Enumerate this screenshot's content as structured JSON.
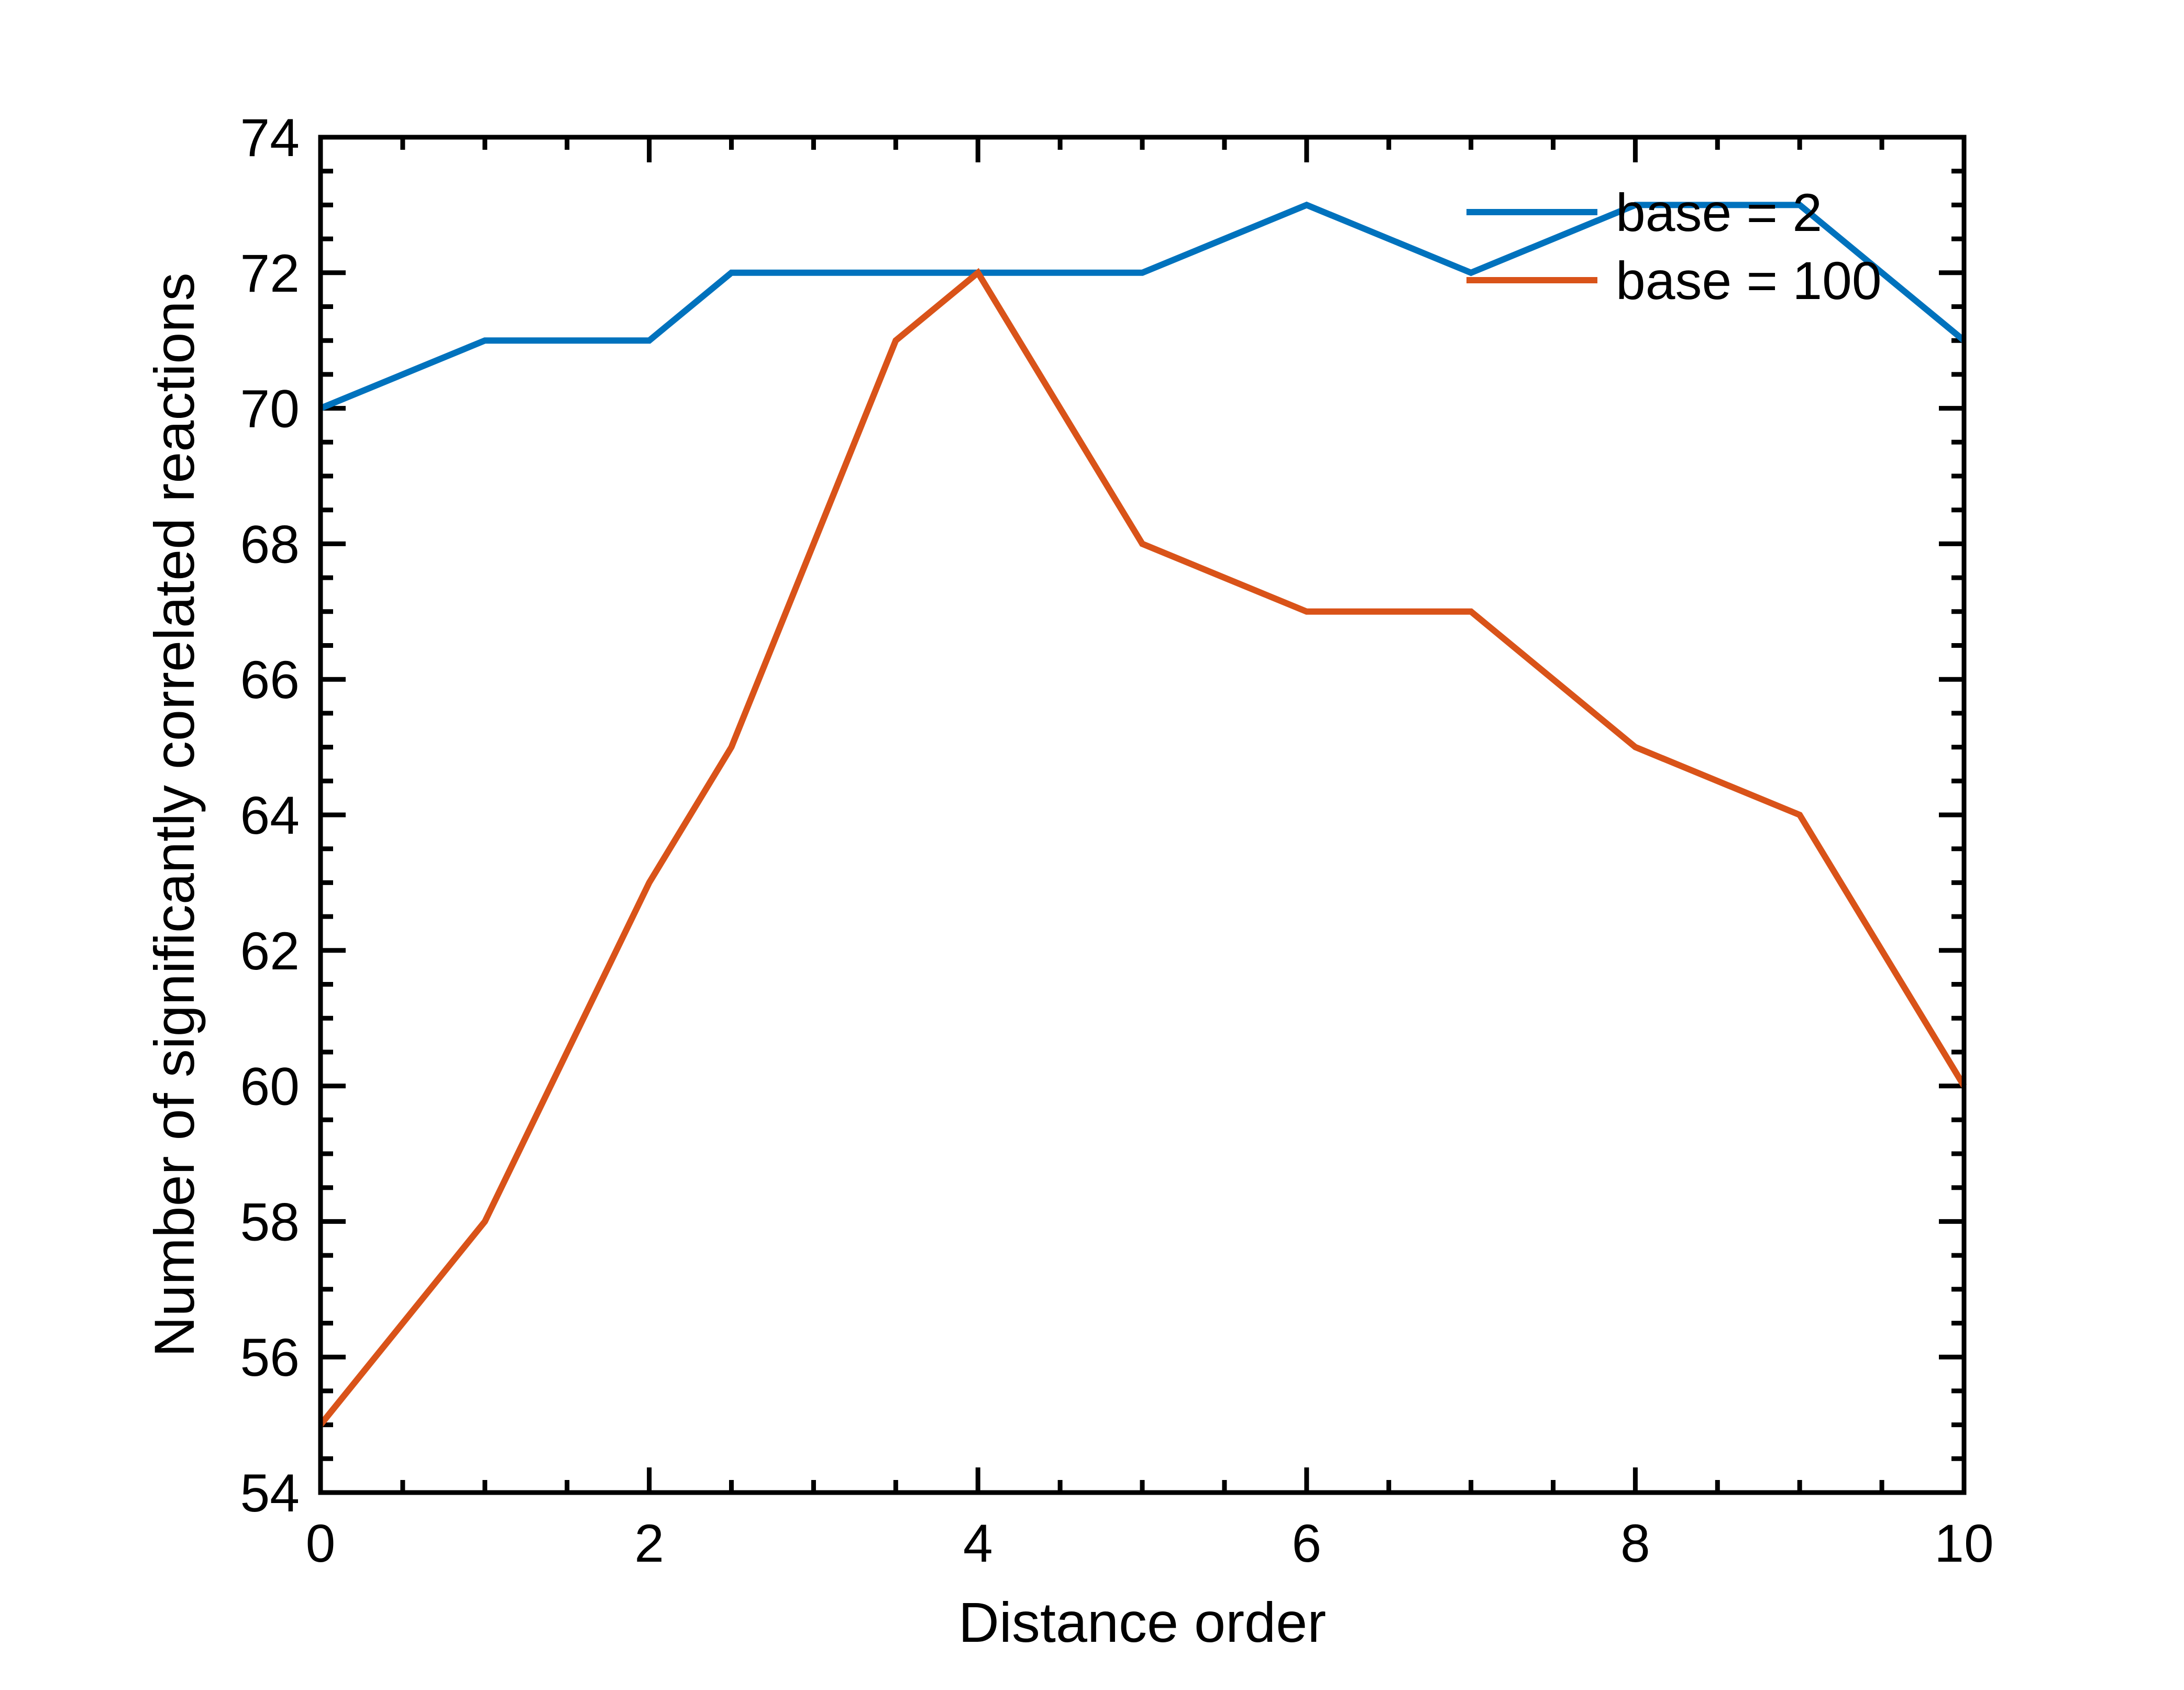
{
  "chart_data": {
    "type": "line",
    "title": "",
    "xlabel": "Distance order",
    "ylabel": "Number of significantly correlated reactions",
    "xlim": [
      0,
      10
    ],
    "ylim": [
      54,
      74
    ],
    "xticks": [
      0,
      2,
      4,
      6,
      8,
      10
    ],
    "yticks": [
      54,
      56,
      58,
      60,
      62,
      64,
      66,
      68,
      70,
      72,
      74
    ],
    "x_minor_step": 0.5,
    "y_minor_step": 0.5,
    "grid": false,
    "legend_position": "top-right",
    "series": [
      {
        "name": "base = 2",
        "color": "#0072BD",
        "x": [
          0,
          1,
          2,
          2.5,
          3.5,
          4,
          5,
          6,
          7,
          8,
          9,
          10
        ],
        "y": [
          70,
          71,
          71,
          72,
          72,
          72,
          72,
          73,
          72,
          73,
          73,
          71
        ]
      },
      {
        "name": "base = 100",
        "color": "#D95319",
        "x": [
          0,
          1,
          2,
          2.5,
          3.5,
          4,
          5,
          6,
          7,
          8,
          9,
          10
        ],
        "y": [
          55,
          58,
          63,
          65,
          71,
          72,
          68,
          67,
          67,
          65,
          64,
          60
        ]
      }
    ]
  }
}
